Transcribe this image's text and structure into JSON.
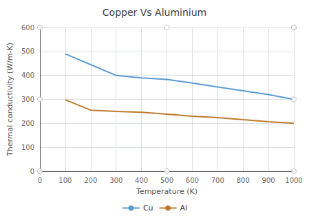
{
  "chart_data": {
    "type": "line",
    "title": "Copper Vs Aluminium",
    "xlabel": "Temperature (K)",
    "ylabel": "Thermal conductivity (W/m-K)",
    "xlim": [
      0,
      1000
    ],
    "ylim": [
      0,
      600
    ],
    "xticks": [
      0,
      100,
      200,
      300,
      400,
      500,
      600,
      700,
      800,
      900,
      1000
    ],
    "yticks": [
      0,
      100,
      200,
      300,
      400,
      500,
      600
    ],
    "grid": true,
    "legend": "bottom",
    "series": [
      {
        "name": "Cu",
        "color": "#5B9BD5",
        "x": [
          100,
          200,
          300,
          400,
          500,
          600,
          700,
          800,
          900,
          1000
        ],
        "values": [
          490,
          445,
          400,
          390,
          383,
          368,
          352,
          336,
          320,
          300
        ]
      },
      {
        "name": "Al",
        "color": "#C07828",
        "x": [
          100,
          200,
          300,
          400,
          500,
          600,
          700,
          800,
          900,
          1000
        ],
        "values": [
          298,
          255,
          250,
          246,
          238,
          230,
          224,
          215,
          207,
          200
        ]
      },
      {
        "type": "scatter",
        "marker": "circle",
        "color": "#AAAAAA",
        "x": [
          500,
          1000
        ],
        "values": [
          600,
          600
        ]
      },
      {
        "type": "scatter",
        "marker": "circle",
        "color": "#AAAAAA",
        "x": [
          0,
          500,
          1000
        ],
        "values": [
          0,
          0,
          0
        ]
      },
      {
        "type": "scatter",
        "marker": "circle",
        "color": "#AAAAAA",
        "x": [
          0,
          0
        ],
        "values": [
          300,
          600
        ]
      },
      {
        "type": "scatter",
        "marker": "circle",
        "color": "#AAAAAA",
        "x": [
          1000,
          1000
        ],
        "values": [
          300,
          600
        ]
      }
    ]
  }
}
